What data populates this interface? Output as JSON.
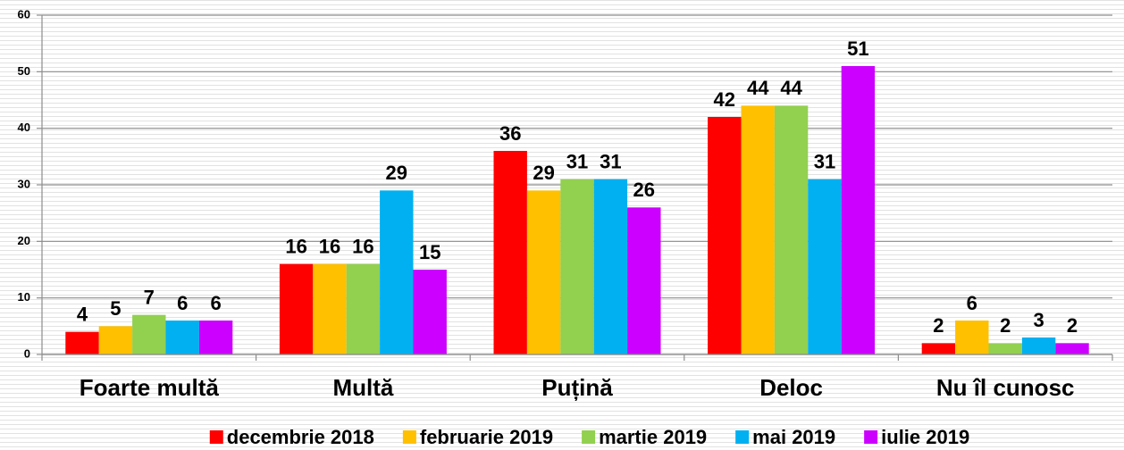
{
  "chart_data": {
    "type": "bar",
    "categories": [
      "Foarte multă",
      "Multă",
      "Puțină",
      "Deloc",
      "Nu îl cunosc"
    ],
    "series": [
      {
        "name": "decembrie 2018",
        "color": "#ff0000",
        "values": [
          4,
          16,
          36,
          42,
          2
        ]
      },
      {
        "name": "februarie 2019",
        "color": "#ffc000",
        "values": [
          5,
          16,
          29,
          44,
          6
        ]
      },
      {
        "name": "martie 2019",
        "color": "#92d050",
        "values": [
          7,
          16,
          31,
          44,
          2
        ]
      },
      {
        "name": "mai 2019",
        "color": "#00b0f0",
        "values": [
          6,
          29,
          31,
          31,
          3
        ]
      },
      {
        "name": "iulie 2019",
        "color": "#cc00ff",
        "values": [
          6,
          15,
          26,
          51,
          2
        ]
      }
    ],
    "ylim": [
      0,
      60
    ],
    "yticks": [
      0,
      10,
      20,
      30,
      40,
      50,
      60
    ],
    "grid": true,
    "legend": "bottom"
  }
}
